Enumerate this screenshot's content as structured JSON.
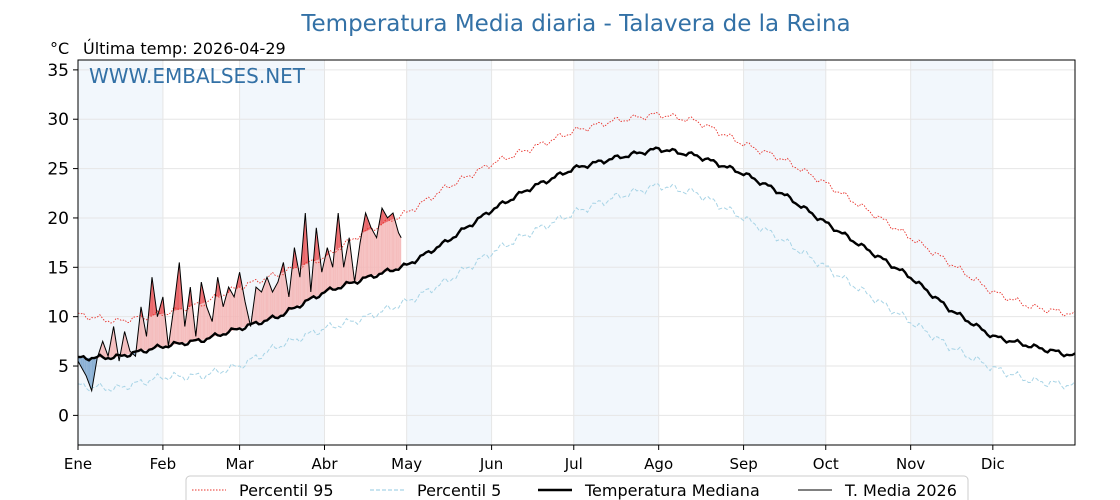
{
  "chart_data": {
    "type": "line",
    "title": "Temperatura Media diaria - Talavera de la Reina",
    "unit": "°C",
    "last_temp_label": "Última temp: 2026-04-29",
    "watermark": "WWW.EMBALSES.NET",
    "ylim": [
      -3,
      36
    ],
    "yticks": [
      0,
      5,
      10,
      15,
      20,
      25,
      30,
      35
    ],
    "months": [
      "Ene",
      "Feb",
      "Mar",
      "Abr",
      "May",
      "Jun",
      "Jul",
      "Ago",
      "Sep",
      "Oct",
      "Nov",
      "Dic"
    ],
    "grid": true,
    "legend_position": "bottom",
    "series": [
      {
        "name": "Percentil 95",
        "style": "dotted",
        "color": "#e8312a",
        "x": [
          1,
          15,
          32,
          46,
          60,
          74,
          91,
          105,
          121,
          135,
          152,
          166,
          182,
          196,
          213,
          227,
          244,
          258,
          274,
          288,
          305,
          319,
          335,
          349,
          365
        ],
        "y": [
          10.2,
          9.5,
          10.3,
          11.3,
          13.0,
          14.3,
          16.0,
          18.5,
          20.5,
          23.0,
          25.5,
          27.0,
          28.8,
          29.8,
          30.5,
          29.8,
          27.5,
          26.0,
          23.5,
          21.0,
          18.0,
          15.5,
          12.5,
          11.0,
          10.2
        ]
      },
      {
        "name": "Percentil 5",
        "style": "dashed",
        "color": "#a8d4e6",
        "x": [
          1,
          15,
          32,
          46,
          60,
          74,
          91,
          105,
          121,
          135,
          152,
          166,
          182,
          196,
          213,
          227,
          244,
          258,
          274,
          288,
          305,
          319,
          335,
          349,
          365
        ],
        "y": [
          3.0,
          2.7,
          3.9,
          4.0,
          5.0,
          7.0,
          8.8,
          9.8,
          11.5,
          13.5,
          16.5,
          18.5,
          20.5,
          22.0,
          23.3,
          22.5,
          20.0,
          17.8,
          15.0,
          12.5,
          9.5,
          7.0,
          4.8,
          3.5,
          3.0
        ]
      },
      {
        "name": "Temperatura Mediana",
        "style": "solid",
        "color": "#000000",
        "x": [
          1,
          15,
          32,
          46,
          60,
          74,
          91,
          105,
          121,
          135,
          152,
          166,
          182,
          196,
          213,
          227,
          244,
          258,
          274,
          288,
          305,
          319,
          335,
          349,
          365
        ],
        "y": [
          5.8,
          5.9,
          7.0,
          7.6,
          8.8,
          10.0,
          12.5,
          13.8,
          15.2,
          17.5,
          20.8,
          23.0,
          25.0,
          26.0,
          27.0,
          26.3,
          24.5,
          22.5,
          19.5,
          17.0,
          14.0,
          10.8,
          8.0,
          7.0,
          6.0
        ]
      },
      {
        "name": "T. Media 2026",
        "style": "solid",
        "color": "#000000",
        "x": [
          1,
          4,
          6,
          8,
          10,
          12,
          14,
          16,
          18,
          20,
          22,
          24,
          26,
          28,
          30,
          32,
          34,
          36,
          38,
          40,
          42,
          44,
          46,
          48,
          50,
          52,
          54,
          56,
          58,
          60,
          62,
          64,
          66,
          68,
          70,
          72,
          74,
          76,
          78,
          80,
          82,
          84,
          86,
          88,
          90,
          92,
          94,
          96,
          98,
          100,
          102,
          104,
          106,
          108,
          110,
          112,
          114,
          116,
          118,
          119
        ],
        "y": [
          5.5,
          4.0,
          2.5,
          5.8,
          7.5,
          6.0,
          9.0,
          5.5,
          8.5,
          6.5,
          6.0,
          11.0,
          8.0,
          14.0,
          10.0,
          12.0,
          7.0,
          11.0,
          15.5,
          9.0,
          13.0,
          8.0,
          13.5,
          11.0,
          9.5,
          14.0,
          11.0,
          13.0,
          12.0,
          14.5,
          11.5,
          9.0,
          13.0,
          12.5,
          14.0,
          12.5,
          13.5,
          15.5,
          12.0,
          17.0,
          14.0,
          20.5,
          12.5,
          19.0,
          14.5,
          17.0,
          15.0,
          20.5,
          15.0,
          18.0,
          13.5,
          17.5,
          20.5,
          19.0,
          18.0,
          21.0,
          20.0,
          20.5,
          18.5,
          18.0
        ]
      }
    ]
  }
}
